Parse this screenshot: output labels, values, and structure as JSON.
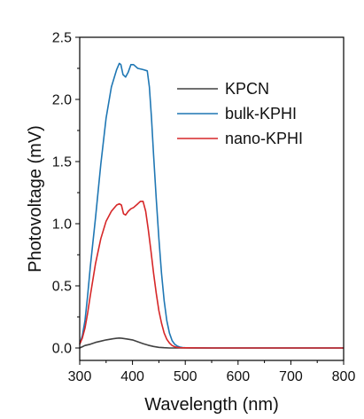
{
  "chart_data": {
    "type": "line",
    "xlabel": "Wavelength (nm)",
    "ylabel": "Photovoltage (mV)",
    "xlim": [
      300,
      800
    ],
    "ylim": [
      -0.1,
      2.5
    ],
    "xticks": [
      300,
      400,
      500,
      600,
      700,
      800
    ],
    "yticks": [
      0.0,
      0.5,
      1.0,
      1.5,
      2.0,
      2.5
    ],
    "ytick_labels": [
      "0.0",
      "0.5",
      "1.0",
      "1.5",
      "2.0",
      "2.5"
    ],
    "legend_position": "top-right",
    "grid": false,
    "series": [
      {
        "name": "KPCN",
        "color": "#404040",
        "x": [
          300,
          305,
          310,
          320,
          330,
          340,
          350,
          360,
          370,
          375,
          380,
          390,
          400,
          410,
          420,
          430,
          440,
          450,
          460,
          470,
          480,
          490,
          500,
          550,
          600,
          650,
          700,
          750,
          800
        ],
        "y": [
          0.0,
          0.01,
          0.02,
          0.03,
          0.045,
          0.055,
          0.065,
          0.072,
          0.078,
          0.08,
          0.078,
          0.072,
          0.065,
          0.05,
          0.035,
          0.022,
          0.012,
          0.005,
          0.002,
          0.0,
          0.0,
          0.0,
          0.0,
          0.0,
          0.0,
          0.0,
          0.0,
          0.0,
          0.0
        ]
      },
      {
        "name": "bulk-KPHI",
        "color": "#1f77b4",
        "x": [
          300,
          305,
          310,
          315,
          320,
          330,
          340,
          350,
          360,
          370,
          375,
          378,
          382,
          387,
          392,
          397,
          402,
          410,
          420,
          428,
          432,
          436,
          440,
          445,
          450,
          455,
          460,
          465,
          470,
          475,
          480,
          485,
          490,
          495,
          500,
          510,
          550,
          600,
          650,
          700,
          750,
          800
        ],
        "y": [
          0.03,
          0.1,
          0.22,
          0.42,
          0.65,
          1.05,
          1.48,
          1.85,
          2.1,
          2.24,
          2.29,
          2.28,
          2.2,
          2.18,
          2.22,
          2.28,
          2.28,
          2.25,
          2.24,
          2.23,
          2.1,
          1.85,
          1.55,
          1.2,
          0.88,
          0.6,
          0.38,
          0.22,
          0.12,
          0.06,
          0.03,
          0.015,
          0.007,
          0.003,
          0.002,
          0.001,
          0.0,
          0.0,
          0.0,
          0.0,
          0.0,
          0.0
        ]
      },
      {
        "name": "nano-KPHI",
        "color": "#d62728",
        "x": [
          300,
          305,
          310,
          315,
          320,
          330,
          340,
          350,
          360,
          370,
          375,
          379,
          383,
          387,
          392,
          397,
          402,
          410,
          415,
          420,
          425,
          430,
          435,
          440,
          445,
          450,
          455,
          460,
          465,
          470,
          475,
          480,
          485,
          490,
          500,
          550,
          600,
          650,
          700,
          750,
          800
        ],
        "y": [
          0.03,
          0.08,
          0.16,
          0.28,
          0.42,
          0.68,
          0.88,
          1.02,
          1.1,
          1.15,
          1.16,
          1.15,
          1.08,
          1.07,
          1.1,
          1.12,
          1.13,
          1.16,
          1.18,
          1.18,
          1.1,
          0.95,
          0.78,
          0.6,
          0.44,
          0.3,
          0.2,
          0.12,
          0.07,
          0.04,
          0.02,
          0.01,
          0.005,
          0.002,
          0.001,
          0.0,
          0.0,
          0.0,
          0.0,
          0.0,
          0.0
        ]
      }
    ]
  }
}
